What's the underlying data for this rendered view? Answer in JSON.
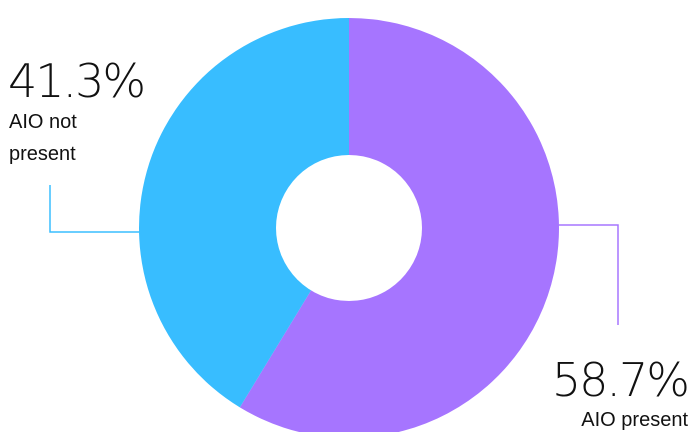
{
  "chart_data": {
    "type": "pie",
    "donut": true,
    "slices": [
      {
        "label_lines": [
          "AIO present"
        ],
        "value": 58.7,
        "value_label": "58.7%",
        "color": "#A675FF"
      },
      {
        "label_lines": [
          "AIO not",
          "present"
        ],
        "value": 41.3,
        "value_label": "41.3%",
        "color": "#38BDFF"
      }
    ]
  }
}
